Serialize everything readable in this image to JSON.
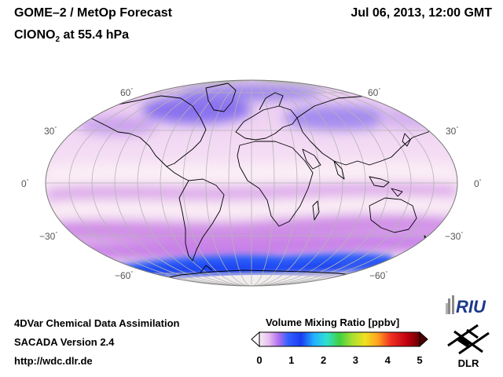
{
  "header": {
    "title": "GOME–2 / MetOp Forecast",
    "datetime": "Jul 06, 2013, 12:00 GMT",
    "species_main": "ClONO",
    "species_sub": "2",
    "species_rest": " at 55.4 hPa"
  },
  "map": {
    "latitude_labels": {
      "n60": "60",
      "n30": "30",
      "eq": "0",
      "s30": "−30",
      "s60": "−60"
    },
    "degree_symbol": "°"
  },
  "footer": {
    "line1": "4DVar Chemical Data Assimilation",
    "line2": "SACADA Version 2.4",
    "line3": "http://wdc.dlr.de"
  },
  "colorbar": {
    "title": "Volume Mixing Ratio [ppbv]",
    "ticks": [
      "0",
      "1",
      "2",
      "3",
      "4",
      "5"
    ],
    "min": 0,
    "max": 5
  },
  "logos": {
    "riu": "RIU",
    "dlr": "DLR"
  },
  "colors": {
    "land_outline": "#000000",
    "graticule": "#b4b4b4"
  }
}
